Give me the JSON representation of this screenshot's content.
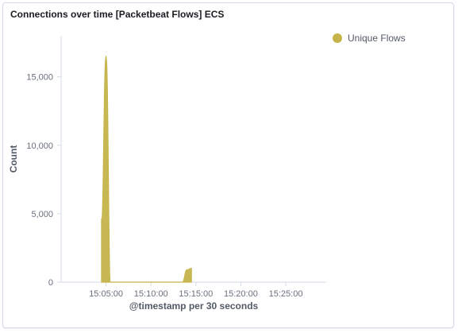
{
  "panel": {
    "title": "Connections over time [Packetbeat Flows] ECS"
  },
  "chart_data": {
    "type": "area",
    "title": "Connections over time [Packetbeat Flows] ECS",
    "xlabel": "@timestamp per 30 seconds",
    "ylabel": "Count",
    "x_ticks": [
      "15:05:00",
      "15:10:00",
      "15:15:00",
      "15:20:00",
      "15:25:00"
    ],
    "y_ticks": [
      0,
      5000,
      10000,
      15000
    ],
    "y_tick_labels": [
      "0",
      "5,000",
      "10,000",
      "15,000"
    ],
    "ylim": [
      0,
      18000
    ],
    "xlim_minutes": [
      0,
      29.5
    ],
    "legend_position": "top-right",
    "series": [
      {
        "name": "Unique Flows",
        "color": "#c5b44a",
        "points": [
          {
            "t": "15:04:30",
            "y": 0
          },
          {
            "t": "15:04:30",
            "y": 4600
          },
          {
            "t": "15:05:00",
            "y": 16500
          },
          {
            "t": "15:05:30",
            "y": 0
          },
          {
            "t": "15:06:00",
            "y": 0
          },
          {
            "t": "15:06:30",
            "y": 0
          },
          {
            "t": "15:07:00",
            "y": 0
          },
          {
            "t": "15:07:30",
            "y": 0
          },
          {
            "t": "15:08:00",
            "y": 0
          },
          {
            "t": "15:08:30",
            "y": 0
          },
          {
            "t": "15:09:00",
            "y": 0
          },
          {
            "t": "15:09:30",
            "y": 0
          },
          {
            "t": "15:10:00",
            "y": 0
          },
          {
            "t": "15:10:30",
            "y": 0
          },
          {
            "t": "15:11:00",
            "y": 0
          },
          {
            "t": "15:11:30",
            "y": 0
          },
          {
            "t": "15:12:00",
            "y": 0
          },
          {
            "t": "15:12:30",
            "y": 0
          },
          {
            "t": "15:13:00",
            "y": 0
          },
          {
            "t": "15:13:30",
            "y": 0
          },
          {
            "t": "15:14:00",
            "y": 900
          },
          {
            "t": "15:14:30",
            "y": 1000
          },
          {
            "t": "15:14:30",
            "y": 0
          }
        ]
      }
    ]
  }
}
